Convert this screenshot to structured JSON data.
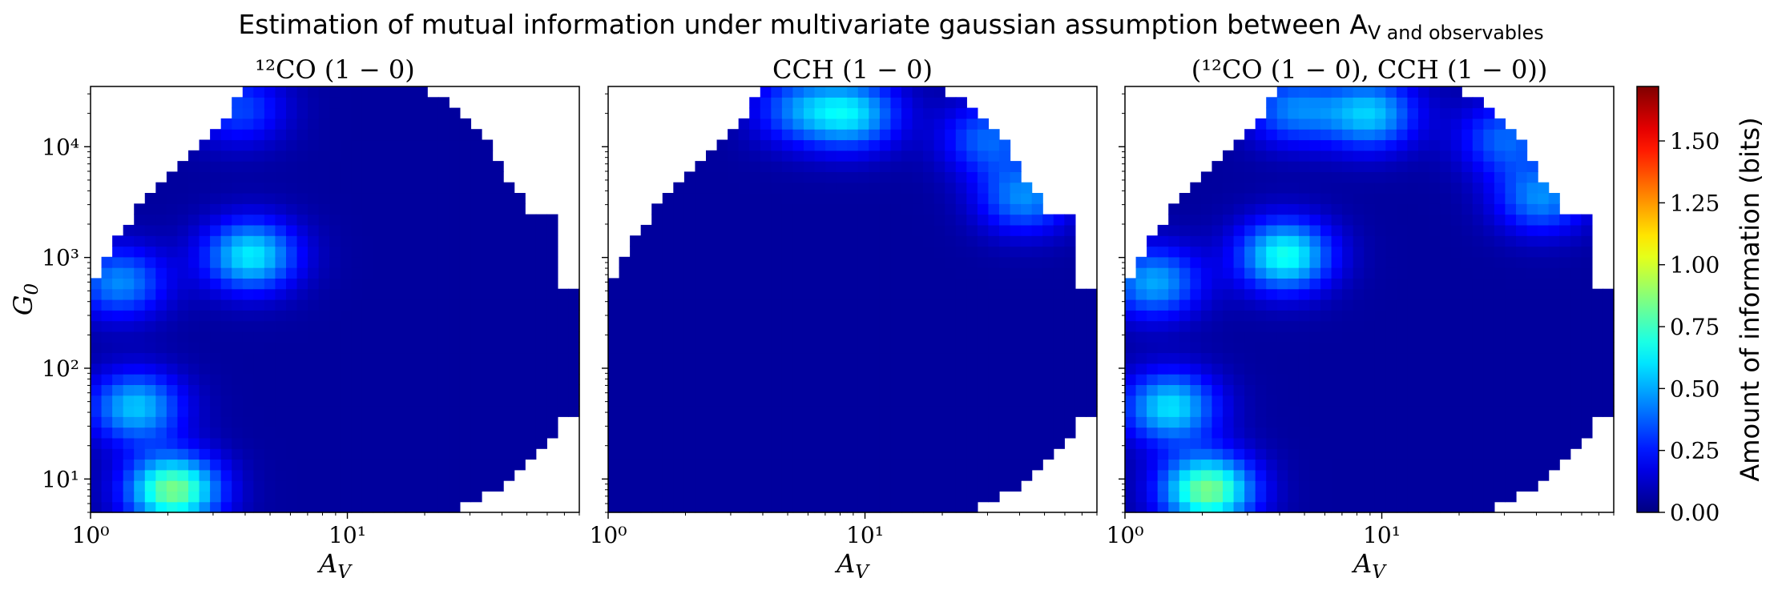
{
  "figure": {
    "title": "Estimation of mutual information under multivariate gaussian assumption between A_V and observables"
  },
  "chart_data": [
    {
      "type": "heatmap",
      "title": "¹²CO (1 − 0)",
      "xlabel": "A_V",
      "ylabel": "G_0",
      "x_scale": "log",
      "y_scale": "log",
      "xlim": [
        1,
        80
      ],
      "ylim": [
        5,
        35000
      ],
      "x_ticks": [
        {
          "value": 1,
          "label": "10⁰"
        },
        {
          "value": 10,
          "label": "10¹"
        }
      ],
      "y_ticks": [
        {
          "value": 10,
          "label": "10¹"
        },
        {
          "value": 100,
          "label": "10²"
        },
        {
          "value": 1000,
          "label": "10³"
        },
        {
          "value": 10000,
          "label": "10⁴"
        }
      ],
      "grid": false,
      "hot_spots": [
        {
          "av": 2.1,
          "g0": 8,
          "bits": 0.85
        },
        {
          "av": 4.2,
          "g0": 1050,
          "bits": 0.62
        },
        {
          "av": 1.5,
          "g0": 45,
          "bits": 0.55
        },
        {
          "av": 1.3,
          "g0": 600,
          "bits": 0.45
        },
        {
          "av": 3.8,
          "g0": 22000,
          "bits": 0.33
        }
      ]
    },
    {
      "type": "heatmap",
      "title": "CCH (1 − 0)",
      "xlabel": "A_V",
      "ylabel": "",
      "x_scale": "log",
      "y_scale": "log",
      "xlim": [
        1,
        80
      ],
      "ylim": [
        5,
        35000
      ],
      "x_ticks": [
        {
          "value": 1,
          "label": "10⁰"
        },
        {
          "value": 10,
          "label": "10¹"
        }
      ],
      "grid": false,
      "hot_spots": [
        {
          "av": 9,
          "g0": 20000,
          "bits": 0.55
        },
        {
          "av": 5.5,
          "g0": 22000,
          "bits": 0.38
        },
        {
          "av": 30,
          "g0": 12000,
          "bits": 0.38
        },
        {
          "av": 42,
          "g0": 3500,
          "bits": 0.45
        }
      ]
    },
    {
      "type": "heatmap",
      "title": "(¹²CO (1 − 0), CCH (1 − 0))",
      "xlabel": "A_V",
      "ylabel": "",
      "x_scale": "log",
      "y_scale": "log",
      "xlim": [
        1,
        80
      ],
      "ylim": [
        5,
        35000
      ],
      "x_ticks": [
        {
          "value": 1,
          "label": "10⁰"
        },
        {
          "value": 10,
          "label": "10¹"
        }
      ],
      "grid": false,
      "hot_spots": [
        {
          "av": 2.1,
          "g0": 8,
          "bits": 0.85
        },
        {
          "av": 4.2,
          "g0": 1050,
          "bits": 0.68
        },
        {
          "av": 1.5,
          "g0": 45,
          "bits": 0.6
        },
        {
          "av": 1.3,
          "g0": 600,
          "bits": 0.5
        },
        {
          "av": 9,
          "g0": 20000,
          "bits": 0.55
        },
        {
          "av": 4.5,
          "g0": 22000,
          "bits": 0.42
        },
        {
          "av": 30,
          "g0": 12000,
          "bits": 0.38
        },
        {
          "av": 42,
          "g0": 3500,
          "bits": 0.45
        }
      ]
    }
  ],
  "colorbar": {
    "label": "Amount of information (bits)",
    "colormap": "jet",
    "range": [
      0,
      1.72
    ],
    "ticks": [
      {
        "value": 0.0,
        "label": "0.00"
      },
      {
        "value": 0.25,
        "label": "0.25"
      },
      {
        "value": 0.5,
        "label": "0.50"
      },
      {
        "value": 0.75,
        "label": "0.75"
      },
      {
        "value": 1.0,
        "label": "1.00"
      },
      {
        "value": 1.25,
        "label": "1.25"
      },
      {
        "value": 1.5,
        "label": "1.50"
      }
    ]
  }
}
